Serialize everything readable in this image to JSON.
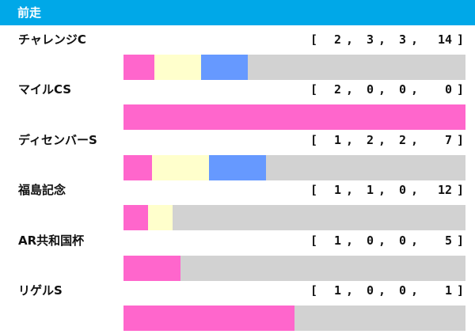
{
  "header": {
    "title": "前走"
  },
  "colors": {
    "header_bg": "#00a8e8",
    "first": "#ff66cc",
    "second": "#ffffcc",
    "third": "#6699ff",
    "other": "#d2d2d2"
  },
  "chart_data": {
    "type": "bar",
    "stacked": true,
    "orientation": "horizontal",
    "title": "前走",
    "categories": [
      "チャレンジC",
      "マイルCS",
      "ディセンバーS",
      "福島記念",
      "AR共和国杯",
      "リゲルS"
    ],
    "series": [
      {
        "values": [
          2,
          2,
          1,
          1,
          1,
          1
        ]
      },
      {
        "values": [
          3,
          0,
          2,
          1,
          0,
          0
        ]
      },
      {
        "values": [
          3,
          0,
          2,
          0,
          0,
          0
        ]
      },
      {
        "values": [
          14,
          0,
          7,
          12,
          5,
          1
        ]
      }
    ],
    "record_labels": [
      {
        "open": "[",
        "v1": "2",
        "v2": "3",
        "v3": "3",
        "v4": "14",
        "close": "]"
      },
      {
        "open": "[",
        "v1": "2",
        "v2": "0",
        "v3": "0",
        "v4": "0",
        "close": "]"
      },
      {
        "open": "[",
        "v1": "1",
        "v2": "2",
        "v3": "2",
        "v4": "7",
        "close": "]"
      },
      {
        "open": "[",
        "v1": "1",
        "v2": "1",
        "v3": "0",
        "v4": "12",
        "close": "]"
      },
      {
        "open": "[",
        "v1": "1",
        "v2": "0",
        "v3": "0",
        "v4": "5",
        "close": "]"
      },
      {
        "open": "[",
        "v1": "1",
        "v2": "0",
        "v3": "0",
        "v4": "1",
        "close": "]"
      }
    ],
    "separator": ","
  }
}
